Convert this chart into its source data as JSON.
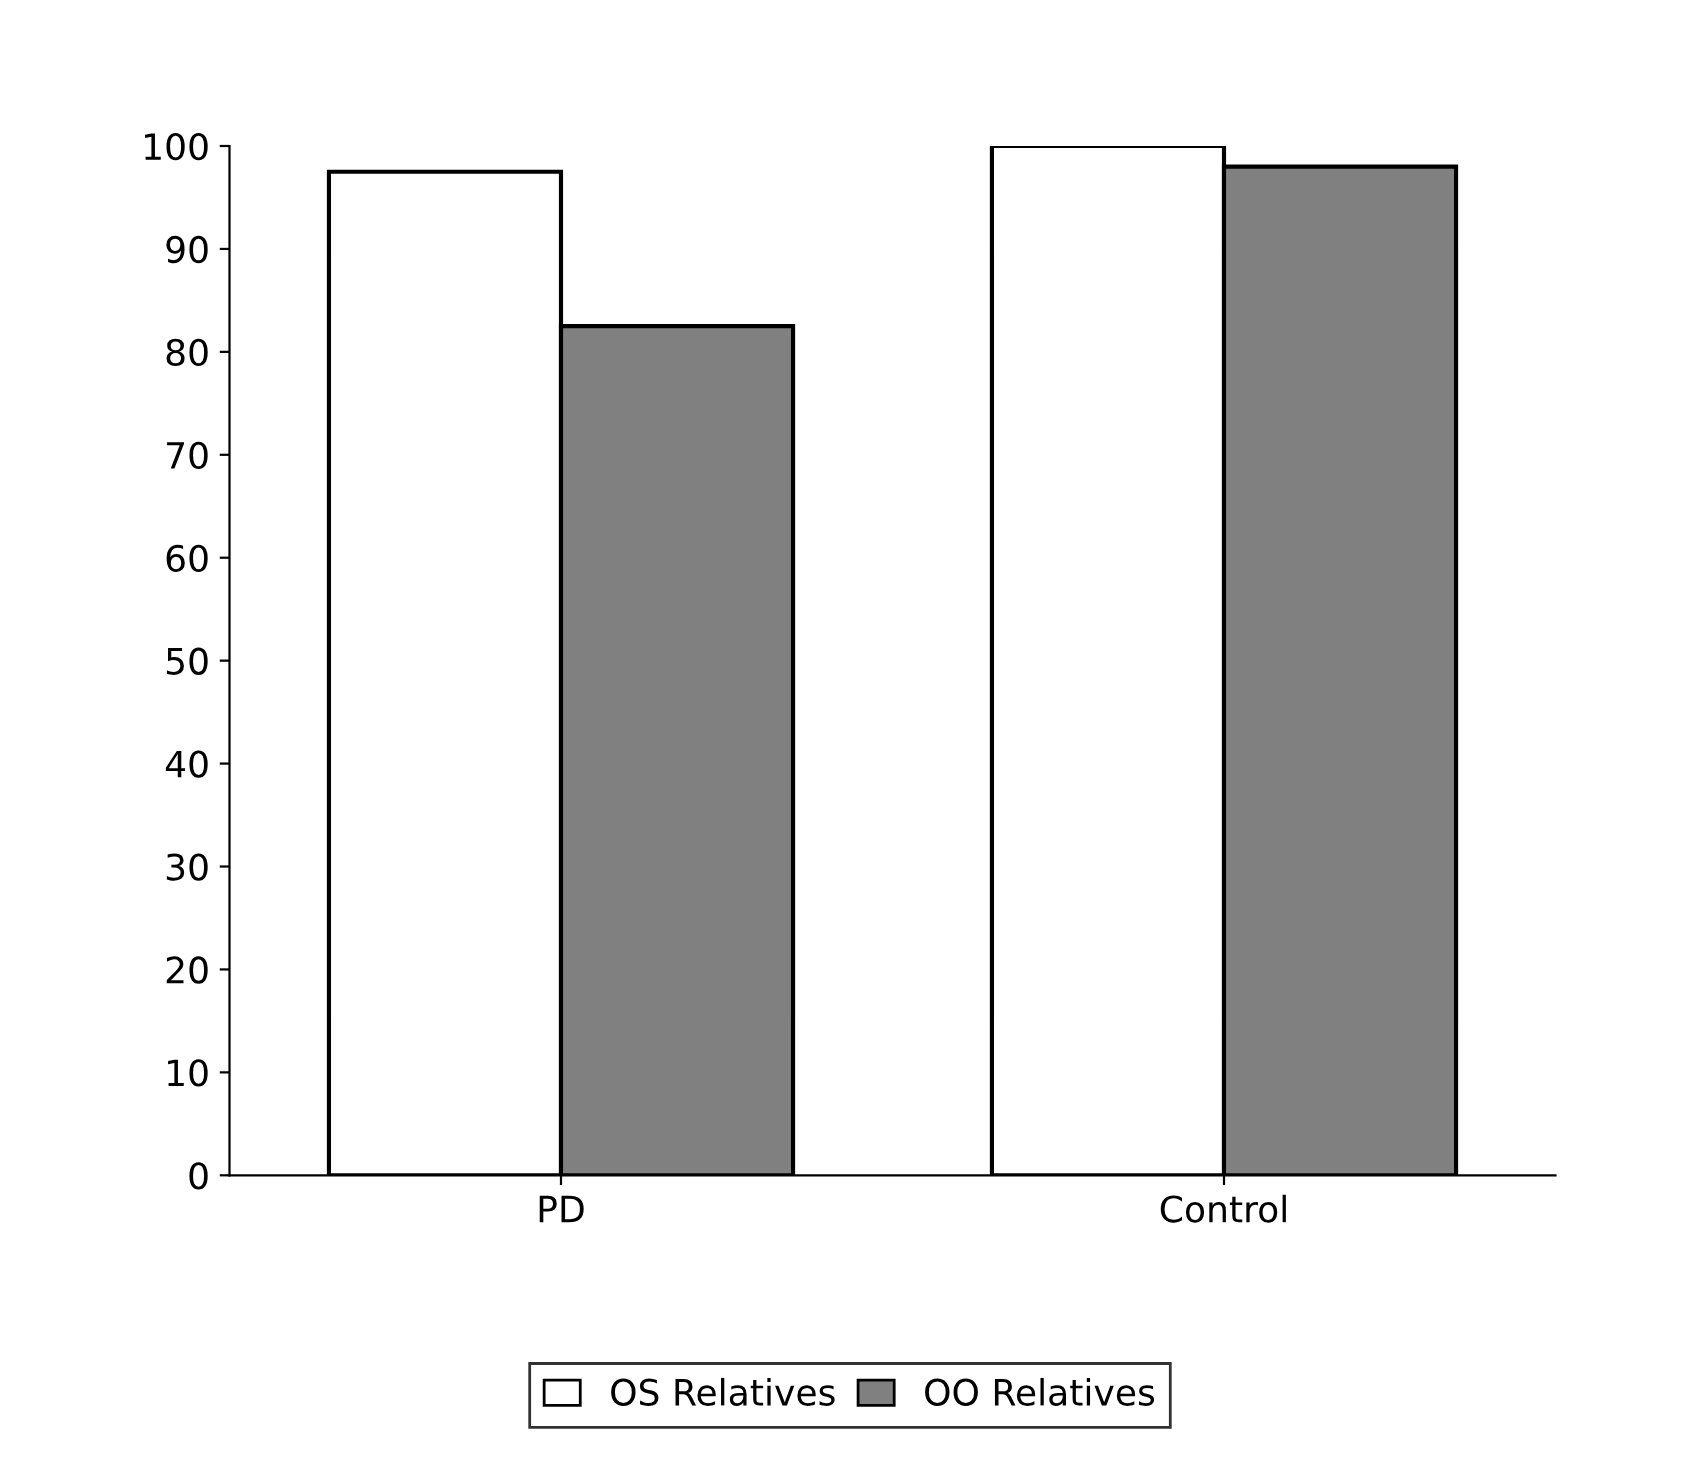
{
  "chart_data": {
    "type": "bar",
    "categories": [
      "PD",
      "Control"
    ],
    "series": [
      {
        "name": "OS Relatives",
        "color": "#ffffff",
        "values": [
          97.5,
          100
        ]
      },
      {
        "name": "OO Relatives",
        "color": "#808080",
        "values": [
          82.5,
          98
        ]
      }
    ],
    "ylim": [
      0,
      100
    ],
    "yticks": [
      0,
      10,
      20,
      30,
      40,
      50,
      60,
      70,
      80,
      90,
      100
    ],
    "grid": false,
    "legend": "bottom"
  }
}
